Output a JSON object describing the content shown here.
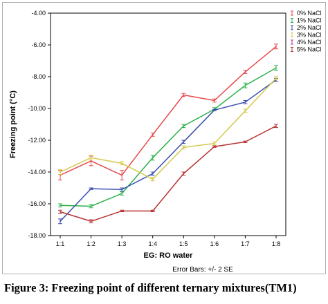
{
  "chart_data": {
    "type": "line",
    "title": "",
    "xlabel": "EG: RO water",
    "ylabel": "Freezing point (°C)",
    "categories": [
      "1:1",
      "1:2",
      "1:3",
      "1:4",
      "1:5",
      "1:6",
      "1:7",
      "1:8"
    ],
    "ylim": [
      -18,
      -4
    ],
    "y_ticks": [
      "-4.00",
      "-6.00",
      "-8.00",
      "-10.00",
      "-12.00",
      "-14.00",
      "-16.00",
      "-18.00"
    ],
    "y_tick_values": [
      -4,
      -6,
      -8,
      -10,
      -12,
      -14,
      -16,
      -18
    ],
    "grid": false,
    "legend_position": "top-right",
    "error_bar_note": "Error Bars: +/- 2 SE",
    "series": [
      {
        "name": "0% NaCl",
        "color": "#e8484a",
        "values": [
          -14.2,
          -13.3,
          -14.2,
          -11.65,
          -9.15,
          -9.5,
          -7.7,
          -6.1
        ],
        "errors": [
          0.3,
          0.3,
          0.3,
          0.1,
          0.1,
          0.1,
          0.1,
          0.15
        ]
      },
      {
        "name": "1% NaCl",
        "color": "#2cb04a",
        "values": [
          -16.1,
          -16.15,
          -15.35,
          -13.1,
          -11.1,
          -10.05,
          -8.55,
          -7.45
        ],
        "errors": [
          0.1,
          0.1,
          0.1,
          0.15,
          0.1,
          0.1,
          0.15,
          0.15
        ]
      },
      {
        "name": "2% NaCl",
        "color": "#3a4fb0",
        "values": [
          -17.1,
          -15.05,
          -15.1,
          -14.1,
          -12.1,
          -10.1,
          -9.6,
          -8.2
        ],
        "errors": [
          0.15,
          0.05,
          0.1,
          0.1,
          0.1,
          0.05,
          0.1,
          0.1
        ]
      },
      {
        "name": "3% NaCl",
        "color": "#d4c94a",
        "values": [
          -14.0,
          -13.1,
          -13.45,
          -14.45,
          -12.45,
          -12.2,
          -10.15,
          -8.1
        ],
        "errors": [
          0.15,
          0.15,
          0.1,
          0.1,
          0.1,
          0.1,
          0.1,
          0.1
        ]
      },
      {
        "name": "4% NaCl",
        "color": "#b03cb0",
        "values": [
          null,
          null,
          null,
          null,
          null,
          null,
          null,
          null
        ],
        "errors": [
          null,
          null,
          null,
          null,
          null,
          null,
          null,
          null
        ]
      },
      {
        "name": "5% NaCl",
        "color": "#b83232",
        "values": [
          -16.5,
          -17.1,
          -16.45,
          -16.45,
          -14.1,
          -12.4,
          -12.1,
          -11.1
        ],
        "errors": [
          0.1,
          0.1,
          0.05,
          0.05,
          0.1,
          0.05,
          0.05,
          0.1
        ]
      }
    ]
  },
  "caption": "Figure 3: Freezing point of different ternary mixtures(TM1)"
}
